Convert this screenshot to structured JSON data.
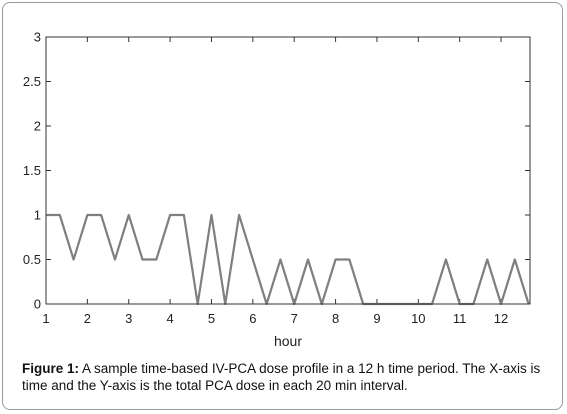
{
  "chart_data": {
    "type": "line",
    "title": "",
    "xlabel": "hour",
    "ylabel": "",
    "xlim": [
      1,
      12.7
    ],
    "ylim": [
      0,
      3
    ],
    "xticks": [
      1,
      2,
      3,
      4,
      5,
      6,
      7,
      8,
      9,
      10,
      11,
      12
    ],
    "yticks": [
      0,
      0.5,
      1,
      1.5,
      2,
      2.5,
      3
    ],
    "ytick_labels": [
      "0",
      "0.5",
      "1",
      "1.5",
      "2",
      "2.5",
      "3"
    ],
    "grid": false,
    "series": [
      {
        "color": "#7f7f7f",
        "x": [
          1,
          1.333,
          1.667,
          2,
          2.333,
          2.667,
          3,
          3.333,
          3.667,
          4,
          4.333,
          4.667,
          5,
          5.333,
          5.667,
          6,
          6.333,
          6.667,
          7,
          7.333,
          7.667,
          8,
          8.333,
          8.667,
          9,
          9.333,
          9.667,
          10,
          10.333,
          10.667,
          11,
          11.333,
          11.667,
          12,
          12.333,
          12.667
        ],
        "y": [
          1,
          1,
          0.5,
          1,
          1,
          0.5,
          1,
          0.5,
          0.5,
          1,
          1,
          0,
          1,
          0,
          1,
          0.5,
          0,
          0.5,
          0,
          0.5,
          0,
          0.5,
          0.5,
          0,
          0,
          0,
          0,
          0,
          0,
          0.5,
          0,
          0,
          0.5,
          0,
          0.5,
          0
        ]
      }
    ]
  },
  "caption": {
    "label": "Figure 1:",
    "text": " A sample time-based IV-PCA dose profile in a 12 h time period. The X-axis is time and the Y-axis is the total PCA dose in each 20 min interval."
  }
}
